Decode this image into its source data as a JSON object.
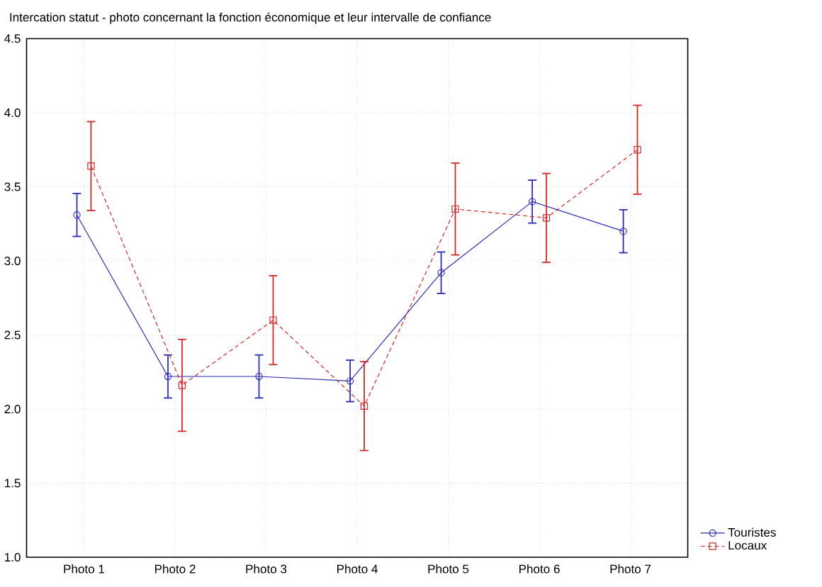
{
  "chart_data": {
    "type": "line",
    "title": "Intercation statut - photo concernant la fonction économique et leur intervalle de confiance",
    "categories": [
      "Photo 1",
      "Photo 2",
      "Photo 3",
      "Photo 4",
      "Photo 5",
      "Photo 6",
      "Photo 7"
    ],
    "series": [
      {
        "name": "Touristes",
        "color": "#2b2bb8",
        "marker": "circle",
        "line_style": "solid",
        "values": [
          3.31,
          2.22,
          2.22,
          2.19,
          2.92,
          3.4,
          3.2
        ],
        "errors": [
          0.145,
          0.145,
          0.145,
          0.14,
          0.14,
          0.145,
          0.145
        ]
      },
      {
        "name": "Locaux",
        "color": "#d02828",
        "marker": "square",
        "line_style": "dashed",
        "values": [
          3.64,
          2.16,
          2.6,
          2.02,
          3.35,
          3.29,
          3.75
        ],
        "errors": [
          0.3,
          0.31,
          0.3,
          0.3,
          0.31,
          0.3,
          0.3
        ]
      }
    ],
    "ylim": [
      1.0,
      4.5
    ],
    "yticks": [
      {
        "value": 1.0,
        "label": "1.0"
      },
      {
        "value": 1.5,
        "label": "1.5"
      },
      {
        "value": 2.0,
        "label": "2.0"
      },
      {
        "value": 2.5,
        "label": "2.5"
      },
      {
        "value": 3.0,
        "label": "3.0"
      },
      {
        "value": 3.5,
        "label": "3.5"
      },
      {
        "value": 4.0,
        "label": "4.0"
      },
      {
        "value": 4.5,
        "label": "4.5"
      }
    ],
    "grid": true,
    "legend": "bottom right"
  }
}
